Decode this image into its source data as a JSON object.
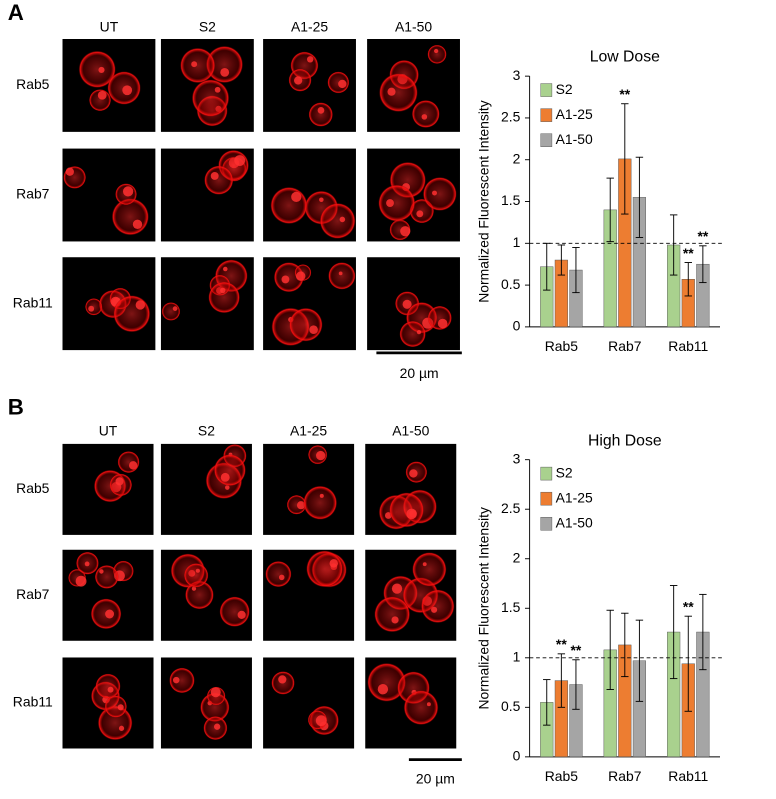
{
  "panels": [
    {
      "label": "A",
      "columns": [
        "UT",
        "S2",
        "A1-25",
        "A1-50"
      ],
      "rows": [
        "Rab5",
        "Rab7",
        "Rab11"
      ],
      "scale_bar": "20 µm"
    },
    {
      "label": "B",
      "columns": [
        "UT",
        "S2",
        "A1-25",
        "A1-50"
      ],
      "rows": [
        "Rab5",
        "Rab7",
        "Rab11"
      ],
      "scale_bar": "20 µm"
    }
  ],
  "chart_data": [
    {
      "type": "bar",
      "title": "Low Dose",
      "ylabel": "Normalized Fluorescent Intensity",
      "categories": [
        "Rab5",
        "Rab7",
        "Rab11"
      ],
      "series": [
        {
          "name": "S2",
          "color": "#a9d18e",
          "values": [
            0.72,
            1.4,
            0.98
          ],
          "errors": [
            0.28,
            0.38,
            0.36
          ],
          "significance": [
            null,
            null,
            null
          ]
        },
        {
          "name": "A1-25",
          "color": "#ed7d31",
          "values": [
            0.8,
            2.01,
            0.57
          ],
          "errors": [
            0.18,
            0.66,
            0.2
          ],
          "significance": [
            null,
            "**",
            "**"
          ]
        },
        {
          "name": "A1-50",
          "color": "#a5a5a5",
          "values": [
            0.68,
            1.55,
            0.75
          ],
          "errors": [
            0.27,
            0.48,
            0.22
          ],
          "significance": [
            null,
            null,
            "**"
          ]
        }
      ],
      "ylim": [
        0,
        3
      ],
      "yticks": [
        0,
        0.5,
        1,
        1.5,
        2,
        2.5,
        3
      ],
      "reference_line": 1,
      "legend": "upper-left"
    },
    {
      "type": "bar",
      "title": "High Dose",
      "ylabel": "Normalized Fluorescent Intensity",
      "categories": [
        "Rab5",
        "Rab7",
        "Rab11"
      ],
      "series": [
        {
          "name": "S2",
          "color": "#a9d18e",
          "values": [
            0.55,
            1.08,
            1.26
          ],
          "errors": [
            0.23,
            0.4,
            0.47
          ],
          "significance": [
            null,
            null,
            null
          ]
        },
        {
          "name": "A1-25",
          "color": "#ed7d31",
          "values": [
            0.77,
            1.13,
            0.94
          ],
          "errors": [
            0.27,
            0.32,
            0.48
          ],
          "significance": [
            "**",
            null,
            "**"
          ]
        },
        {
          "name": "A1-50",
          "color": "#a5a5a5",
          "values": [
            0.73,
            0.97,
            1.26
          ],
          "errors": [
            0.25,
            0.41,
            0.38
          ],
          "significance": [
            "**",
            null,
            null
          ]
        }
      ],
      "ylim": [
        0,
        3
      ],
      "yticks": [
        0,
        0.5,
        1,
        1.5,
        2,
        2.5,
        3
      ],
      "reference_line": 1,
      "legend": "upper-left"
    }
  ]
}
